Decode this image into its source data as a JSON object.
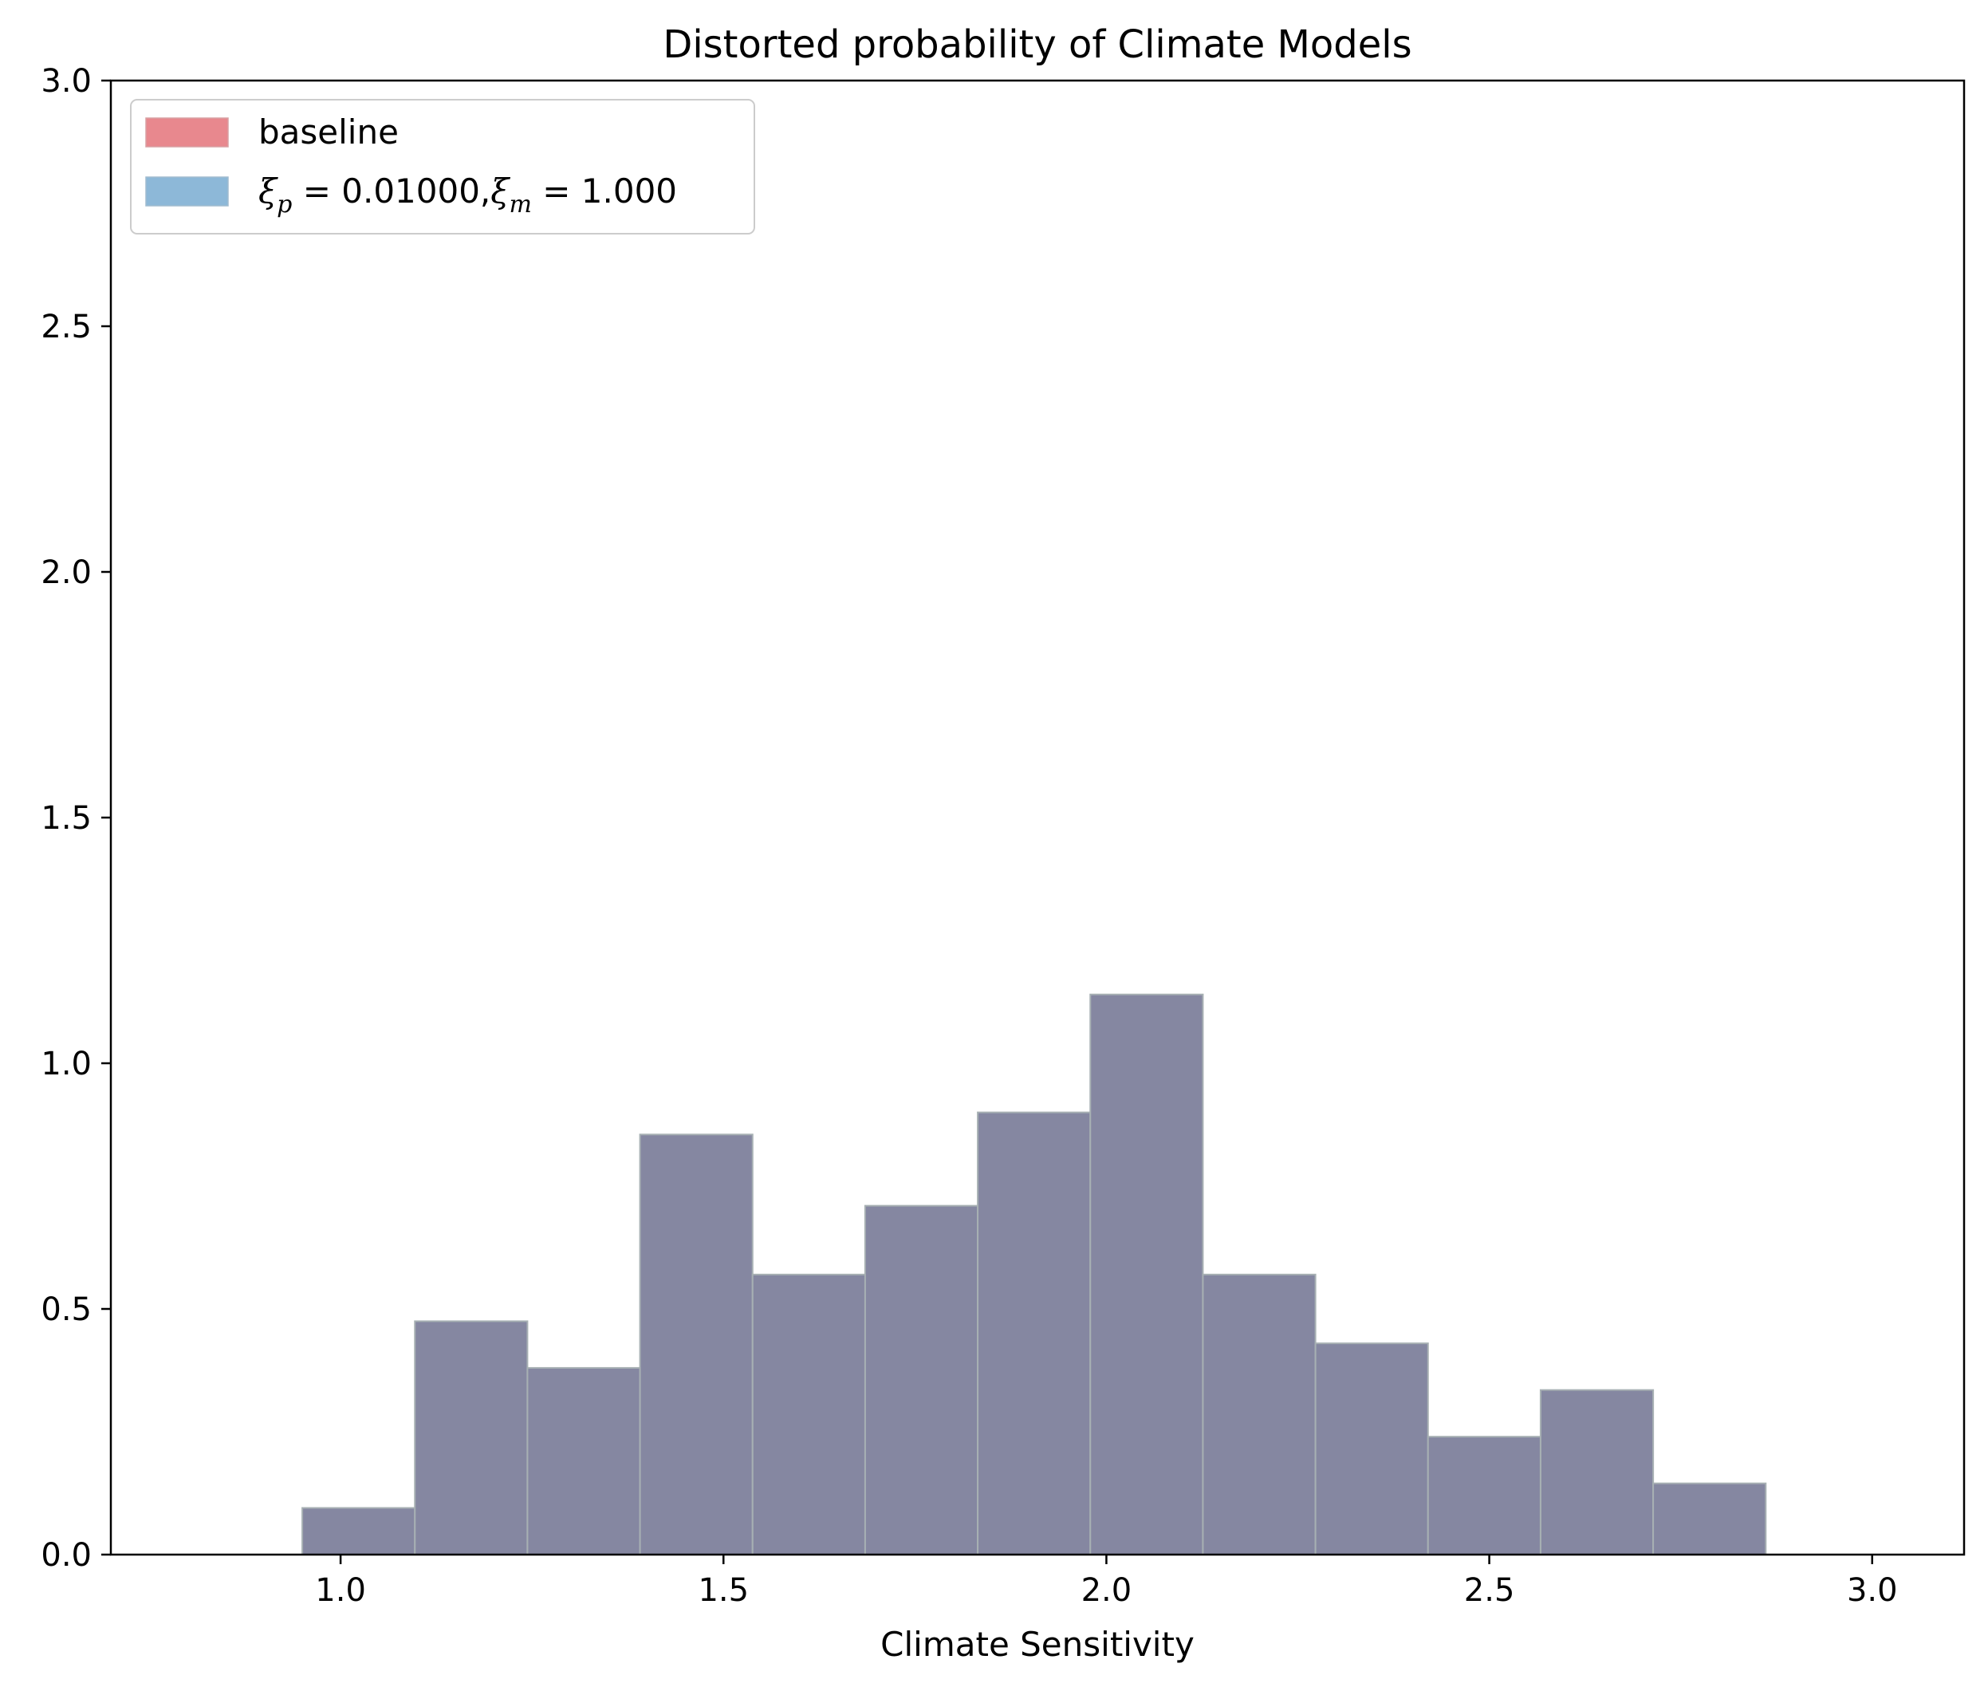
{
  "chart_data": {
    "type": "bar",
    "subtype": "histogram",
    "title": "Distorted probability of Climate Models",
    "xlabel": "Climate Sensitivity",
    "ylabel": "",
    "xlim": [
      0.7,
      3.12
    ],
    "ylim": [
      0,
      3.0
    ],
    "xticks": [
      1.0,
      1.5,
      2.0,
      2.5,
      3.0
    ],
    "xtick_labels": [
      "1.0",
      "1.5",
      "2.0",
      "2.5",
      "3.0"
    ],
    "yticks": [
      0.0,
      0.5,
      1.0,
      1.5,
      2.0,
      2.5,
      3.0
    ],
    "ytick_labels": [
      "0.0",
      "0.5",
      "1.0",
      "1.5",
      "2.0",
      "2.5",
      "3.0"
    ],
    "grid": false,
    "legend_position": "top-left",
    "bin_edges": [
      0.95,
      1.097,
      1.244,
      1.391,
      1.538,
      1.685,
      1.832,
      1.979,
      2.126,
      2.273,
      2.42,
      2.567,
      2.714,
      2.861
    ],
    "series": [
      {
        "name": "baseline",
        "color": "#e8888e",
        "values": [
          0.095,
          0.475,
          0.38,
          0.855,
          0.57,
          0.71,
          0.9,
          1.14,
          0.57,
          0.43,
          0.24,
          0.335,
          0.145
        ]
      },
      {
        "name": "ξp = 0.01000, ξm = 1.000",
        "color": "#8db8d8",
        "values": [
          0.095,
          0.475,
          0.38,
          0.855,
          0.57,
          0.71,
          0.9,
          1.14,
          0.57,
          0.43,
          0.24,
          0.335,
          0.145
        ]
      }
    ],
    "legend": {
      "baseline_label": "baseline",
      "distorted_label": {
        "xi_p_symbol": "ξ",
        "xi_p_sub": "p",
        "xi_p_value": " = 0.01000,",
        "xi_m_symbol": "ξ",
        "xi_m_sub": "m",
        "xi_m_value": " = 1.000"
      }
    },
    "overlap_color": "#8587a1",
    "edge_color": "#a7b0b3"
  }
}
